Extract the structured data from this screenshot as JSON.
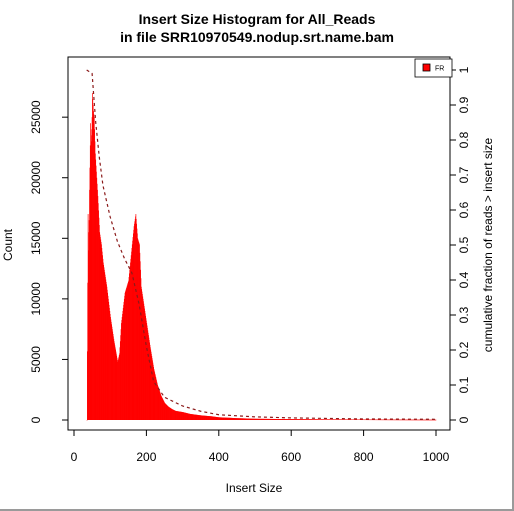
{
  "chart_data": {
    "type": "bar",
    "title": [
      "Insert Size Histogram for All_Reads",
      "in file SRR10970549.nodup.srt.name.bam"
    ],
    "xlabel": "Insert Size",
    "ylabel": "Count",
    "y2label": "cumulative fraction of reads > insert size",
    "xlim": [
      0,
      1000
    ],
    "ylim": [
      0,
      28500
    ],
    "y2lim": [
      0,
      1
    ],
    "xticks": [
      0,
      200,
      400,
      600,
      800,
      1000
    ],
    "yticks": [
      0,
      5000,
      10000,
      15000,
      20000,
      25000
    ],
    "y2ticks": [
      0,
      0.1,
      0.2,
      0.3,
      0.4,
      0.5,
      0.6,
      0.7,
      0.8,
      0.9,
      1
    ],
    "xtick_labels": [
      "0",
      "200",
      "400",
      "600",
      "800",
      "1000"
    ],
    "ytick_labels": [
      "0",
      "5000",
      "10000",
      "15000",
      "20000",
      "25000"
    ],
    "y2tick_labels": [
      "0",
      "0.1",
      "0.2",
      "0.3",
      "0.4",
      "0.5",
      "0.6",
      "0.7",
      "0.8",
      "0.9",
      "1"
    ],
    "legend": {
      "placement": "top-right",
      "entries": [
        {
          "label": "FR",
          "color": "#ff0000"
        }
      ]
    },
    "grid": false,
    "series": [
      {
        "name": "FR",
        "kind": "histogram",
        "color": "#ff0000",
        "x": [
          35,
          38,
          40,
          42,
          45,
          48,
          50,
          53,
          55,
          58,
          60,
          65,
          70,
          75,
          80,
          90,
          100,
          110,
          120,
          125,
          130,
          140,
          150,
          160,
          165,
          170,
          175,
          180,
          185,
          190,
          195,
          200,
          210,
          220,
          230,
          240,
          250,
          260,
          270,
          280,
          300,
          320,
          350,
          380,
          400,
          450,
          500,
          600,
          700,
          800,
          900,
          1000
        ],
        "values": [
          0,
          17000,
          14000,
          19000,
          24500,
          23000,
          27000,
          25500,
          25000,
          22000,
          21000,
          18500,
          15500,
          14500,
          13000,
          11000,
          8500,
          6500,
          4800,
          5500,
          8000,
          10500,
          11500,
          14500,
          16000,
          17000,
          15000,
          14500,
          11000,
          10000,
          9000,
          8000,
          6000,
          4200,
          2900,
          2000,
          1400,
          1100,
          900,
          750,
          650,
          500,
          380,
          300,
          220,
          150,
          100,
          70,
          50,
          40,
          30,
          20
        ]
      },
      {
        "name": "",
        "kind": "cumulative",
        "axis": "right",
        "color": "#8b1a1a",
        "x": [
          35,
          50,
          60,
          70,
          80,
          100,
          120,
          140,
          160,
          180,
          200,
          220,
          250,
          300,
          350,
          400,
          500,
          600,
          800,
          1000
        ],
        "values": [
          1.0,
          0.99,
          0.85,
          0.75,
          0.67,
          0.58,
          0.51,
          0.46,
          0.42,
          0.33,
          0.21,
          0.11,
          0.065,
          0.04,
          0.025,
          0.015,
          0.009,
          0.006,
          0.003,
          0.002
        ]
      }
    ]
  }
}
